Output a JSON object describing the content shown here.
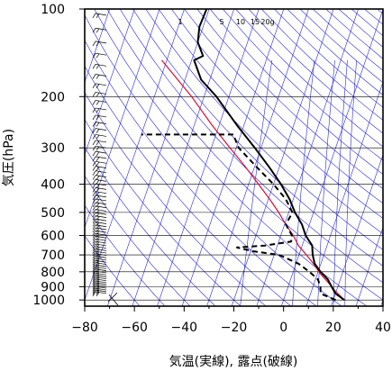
{
  "chart_data": {
    "type": "line",
    "subtype": "skew-t-log-p",
    "title": "",
    "xlabel": "気温(実線), 露点(破線)",
    "ylabel": "気圧(hPa)",
    "xlim": [
      -80,
      40
    ],
    "ylim": [
      1050,
      100
    ],
    "y_scale": "log",
    "x_ticks": [
      -80,
      -60,
      -40,
      -20,
      0,
      20,
      40
    ],
    "x_tick_labels": [
      "−80",
      "−60",
      "−40",
      "−20",
      "0",
      "20",
      "40"
    ],
    "y_ticks": [
      100,
      200,
      300,
      400,
      500,
      600,
      700,
      800,
      900,
      1000
    ],
    "y_tick_labels": [
      "100",
      "200",
      "300",
      "400",
      "500",
      "600",
      "700",
      "800",
      "900",
      "1000"
    ],
    "mixing_ratio_labels": [
      "1",
      "5",
      "10",
      "15",
      "20g"
    ],
    "mixing_ratio_values": [
      1,
      5,
      10,
      15,
      20
    ],
    "colors": {
      "temperature": "#000000",
      "dewpoint": "#000000",
      "parcel": "#d0103a",
      "background_lines": "#2a2ad0",
      "grid": "#000000"
    },
    "grid": true,
    "series": [
      {
        "kind": "temperature",
        "style": "solid",
        "points": [
          {
            "t": 24.5,
            "p": 1000
          },
          {
            "t": 20.0,
            "p": 950
          },
          {
            "t": 17.5,
            "p": 900
          },
          {
            "t": 15.0,
            "p": 850
          },
          {
            "t": 11.0,
            "p": 800
          },
          {
            "t": 7.5,
            "p": 750
          },
          {
            "t": 5.5,
            "p": 700
          },
          {
            "t": 4.0,
            "p": 650
          },
          {
            "t": 0.0,
            "p": 600
          },
          {
            "t": -3.0,
            "p": 550
          },
          {
            "t": -7.5,
            "p": 500
          },
          {
            "t": -11.5,
            "p": 450
          },
          {
            "t": -17.0,
            "p": 400
          },
          {
            "t": -24.0,
            "p": 350
          },
          {
            "t": -32.5,
            "p": 300
          },
          {
            "t": -43.0,
            "p": 250
          },
          {
            "t": -55.0,
            "p": 200
          },
          {
            "t": -63.5,
            "p": 175
          },
          {
            "t": -69.0,
            "p": 150
          },
          {
            "t": -66.0,
            "p": 145
          },
          {
            "t": -70.0,
            "p": 130
          },
          {
            "t": -71.5,
            "p": 115
          },
          {
            "t": -71.0,
            "p": 100
          }
        ]
      },
      {
        "kind": "dewpoint",
        "style": "dashed",
        "points": [
          {
            "t": 21.0,
            "p": 1000
          },
          {
            "t": 14.0,
            "p": 950
          },
          {
            "t": 13.0,
            "p": 900
          },
          {
            "t": 11.0,
            "p": 850
          },
          {
            "t": 6.5,
            "p": 800
          },
          {
            "t": 1.0,
            "p": 750
          },
          {
            "t": -8.0,
            "p": 700
          },
          {
            "t": -19.0,
            "p": 680
          },
          {
            "t": -26.0,
            "p": 660
          },
          {
            "t": -15.0,
            "p": 650
          },
          {
            "t": -5.0,
            "p": 630
          },
          {
            "t": -5.5,
            "p": 600
          },
          {
            "t": -9.5,
            "p": 550
          },
          {
            "t": -8.5,
            "p": 500
          },
          {
            "t": -13.0,
            "p": 450
          },
          {
            "t": -20.0,
            "p": 400
          },
          {
            "t": -29.0,
            "p": 350
          },
          {
            "t": -39.0,
            "p": 300
          },
          {
            "t": -43.0,
            "p": 270
          },
          {
            "t": -80.0,
            "p": 270
          }
        ]
      },
      {
        "kind": "parcel",
        "style": "solid",
        "points": [
          {
            "t": 24.5,
            "p": 1000
          },
          {
            "t": 19.5,
            "p": 930
          },
          {
            "t": 15.5,
            "p": 870
          },
          {
            "t": 11.0,
            "p": 810
          },
          {
            "t": 7.0,
            "p": 750
          },
          {
            "t": 3.0,
            "p": 700
          },
          {
            "t": -1.5,
            "p": 650
          },
          {
            "t": -5.0,
            "p": 600
          },
          {
            "t": -9.5,
            "p": 550
          },
          {
            "t": -14.0,
            "p": 500
          },
          {
            "t": -19.5,
            "p": 450
          },
          {
            "t": -26.0,
            "p": 400
          },
          {
            "t": -33.5,
            "p": 350
          },
          {
            "t": -42.5,
            "p": 300
          },
          {
            "t": -53.0,
            "p": 250
          },
          {
            "t": -65.0,
            "p": 200
          },
          {
            "t": -82.0,
            "p": 150
          }
        ]
      }
    ]
  }
}
